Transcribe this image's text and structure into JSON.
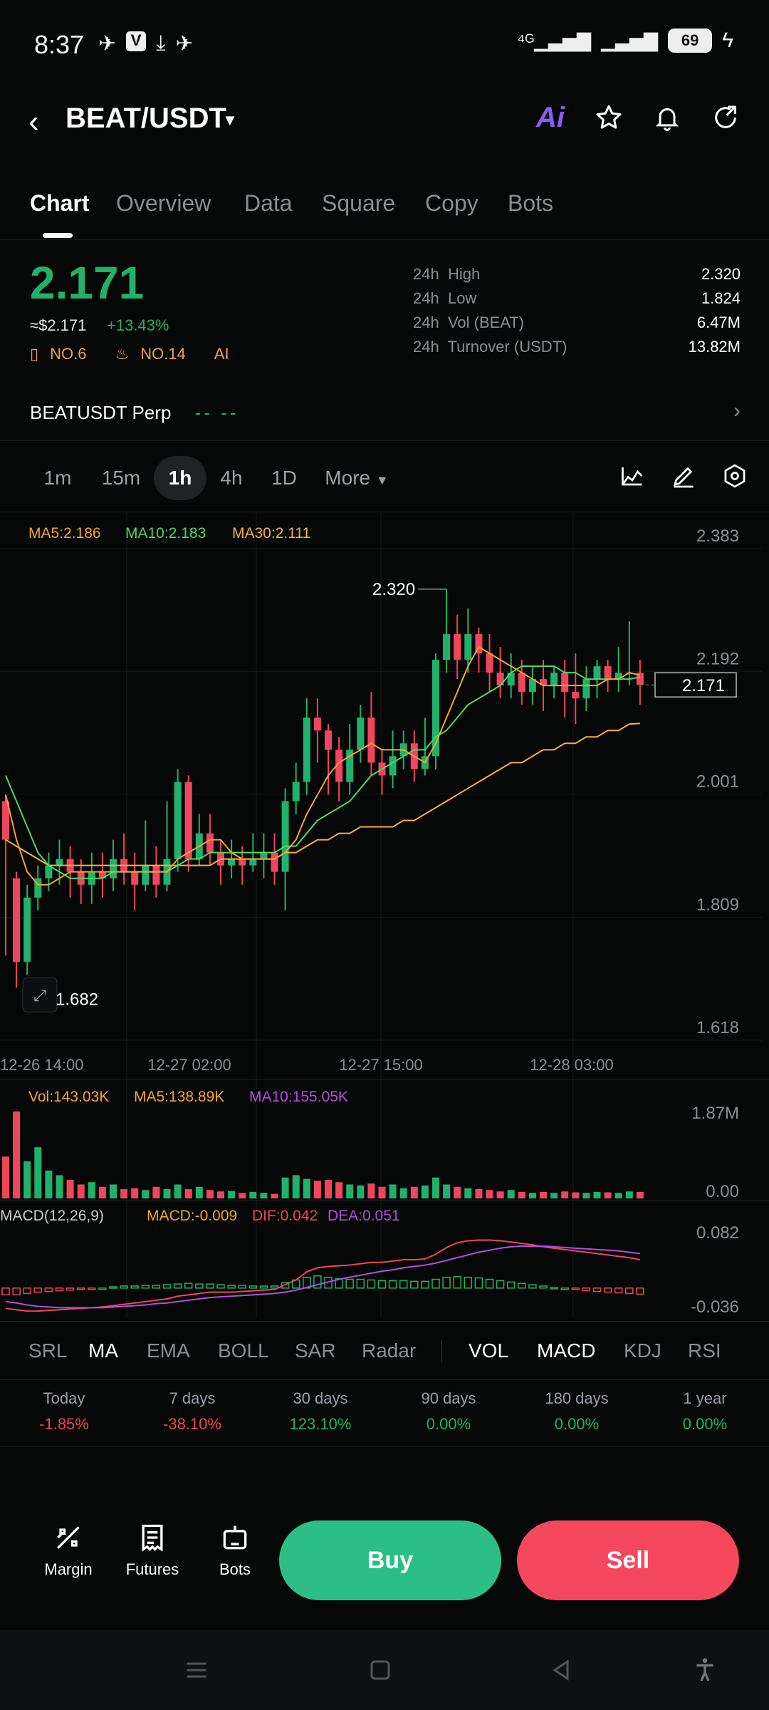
{
  "status_bar": {
    "time": "8:37",
    "battery": "69"
  },
  "header": {
    "pair": "BEAT/USDT",
    "ai_label": "Ai"
  },
  "tabs": [
    "Chart",
    "Overview",
    "Data",
    "Square",
    "Copy",
    "Bots"
  ],
  "active_tab": "Chart",
  "price": {
    "last": "2.171",
    "usd": "≈$2.171",
    "change": "+13.43%",
    "rank1": "NO.6",
    "rank2": "NO.14",
    "ai": "AI"
  },
  "stats": [
    {
      "period": "24h",
      "label": "High",
      "value": "2.320"
    },
    {
      "period": "24h",
      "label": "Low",
      "value": "1.824"
    },
    {
      "period": "24h",
      "label": "Vol (BEAT)",
      "value": "6.47M"
    },
    {
      "period": "24h",
      "label": "Turnover (USDT)",
      "value": "13.82M"
    }
  ],
  "perp": {
    "label": "BEATUSDT Perp",
    "value": "-- --"
  },
  "intervals": [
    "1m",
    "15m",
    "1h",
    "4h",
    "1D",
    "More"
  ],
  "active_interval": "1h",
  "ma_legend": {
    "ma5": "MA5:2.186",
    "ma10": "MA10:2.183",
    "ma30": "MA30:2.111"
  },
  "vol_legend": {
    "vol": "Vol:143.03K",
    "ma5": "MA5:138.89K",
    "ma10": "MA10:155.05K"
  },
  "macd_legend": {
    "title": "MACD(12,26,9)",
    "macd": "MACD:-0.009",
    "dif": "DIF:0.042",
    "dea": "DEA:0.051"
  },
  "colors": {
    "up": "#20b26c",
    "down": "#f0455e",
    "ma5": "#f5a623",
    "ma10": "#4cd964",
    "ma30": "#f5b041",
    "purple": "#b44ee0"
  },
  "chart_data": {
    "type": "candlestick",
    "y_ticks": [
      "2.383",
      "2.192",
      "2.001",
      "1.809",
      "1.618"
    ],
    "ylim": [
      1.618,
      2.383
    ],
    "x_ticks": [
      "12-26 14:00",
      "12-27 02:00",
      "12-27 15:00",
      "12-28 03:00"
    ],
    "high_label": "2.320",
    "low_label": "1.682",
    "last_price_label": "2.171",
    "candles": [
      [
        1.99,
        1.93,
        2.0,
        1.75
      ],
      [
        1.87,
        1.74,
        1.88,
        1.7
      ],
      [
        1.74,
        1.84,
        1.86,
        1.72
      ],
      [
        1.84,
        1.87,
        1.89,
        1.82
      ],
      [
        1.87,
        1.89,
        1.91,
        1.85
      ],
      [
        1.89,
        1.9,
        1.93,
        1.86
      ],
      [
        1.9,
        1.88,
        1.92,
        1.84
      ],
      [
        1.88,
        1.86,
        1.9,
        1.83
      ],
      [
        1.86,
        1.88,
        1.91,
        1.83
      ],
      [
        1.88,
        1.87,
        1.91,
        1.84
      ],
      [
        1.87,
        1.9,
        1.93,
        1.85
      ],
      [
        1.9,
        1.88,
        1.94,
        1.86
      ],
      [
        1.88,
        1.86,
        1.91,
        1.82
      ],
      [
        1.86,
        1.89,
        1.96,
        1.85
      ],
      [
        1.89,
        1.86,
        1.92,
        1.84
      ],
      [
        1.86,
        1.9,
        1.99,
        1.85
      ],
      [
        1.9,
        2.02,
        2.04,
        1.88
      ],
      [
        2.02,
        1.9,
        2.03,
        1.88
      ],
      [
        1.9,
        1.94,
        1.97,
        1.89
      ],
      [
        1.94,
        1.91,
        1.97,
        1.89
      ],
      [
        1.91,
        1.89,
        1.93,
        1.86
      ],
      [
        1.89,
        1.9,
        1.93,
        1.87
      ],
      [
        1.9,
        1.89,
        1.92,
        1.86
      ],
      [
        1.89,
        1.9,
        1.94,
        1.88
      ],
      [
        1.9,
        1.91,
        1.94,
        1.87
      ],
      [
        1.91,
        1.88,
        1.94,
        1.86
      ],
      [
        1.88,
        1.99,
        2.01,
        1.82
      ],
      [
        1.99,
        2.02,
        2.05,
        1.97
      ],
      [
        2.02,
        2.12,
        2.15,
        2.0
      ],
      [
        2.12,
        2.1,
        2.15,
        2.05
      ],
      [
        2.1,
        2.07,
        2.11,
        2.0
      ],
      [
        2.07,
        2.02,
        2.09,
        1.99
      ],
      [
        2.02,
        2.07,
        2.11,
        2.0
      ],
      [
        2.07,
        2.12,
        2.14,
        2.05
      ],
      [
        2.12,
        2.05,
        2.16,
        2.03
      ],
      [
        2.05,
        2.03,
        2.07,
        2.0
      ],
      [
        2.03,
        2.06,
        2.1,
        2.01
      ],
      [
        2.06,
        2.08,
        2.1,
        2.04
      ],
      [
        2.08,
        2.04,
        2.1,
        2.02
      ],
      [
        2.04,
        2.06,
        2.12,
        2.03
      ],
      [
        2.06,
        2.21,
        2.22,
        2.04
      ],
      [
        2.21,
        2.25,
        2.32,
        2.19
      ],
      [
        2.25,
        2.21,
        2.28,
        2.18
      ],
      [
        2.21,
        2.25,
        2.29,
        2.19
      ],
      [
        2.25,
        2.22,
        2.26,
        2.19
      ],
      [
        2.22,
        2.19,
        2.25,
        2.16
      ],
      [
        2.19,
        2.17,
        2.23,
        2.15
      ],
      [
        2.17,
        2.19,
        2.22,
        2.15
      ],
      [
        2.19,
        2.16,
        2.21,
        2.14
      ],
      [
        2.16,
        2.18,
        2.2,
        2.14
      ],
      [
        2.18,
        2.17,
        2.21,
        2.13
      ],
      [
        2.17,
        2.19,
        2.2,
        2.15
      ],
      [
        2.19,
        2.16,
        2.21,
        2.12
      ],
      [
        2.16,
        2.15,
        2.22,
        2.11
      ],
      [
        2.15,
        2.18,
        2.2,
        2.13
      ],
      [
        2.18,
        2.2,
        2.21,
        2.15
      ],
      [
        2.2,
        2.18,
        2.21,
        2.16
      ],
      [
        2.18,
        2.19,
        2.23,
        2.16
      ],
      [
        2.19,
        2.19,
        2.27,
        2.17
      ],
      [
        2.19,
        2.171,
        2.21,
        2.14
      ]
    ],
    "ma5": [
      2.0,
      1.93,
      1.88,
      1.86,
      1.86,
      1.87,
      1.88,
      1.88,
      1.88,
      1.88,
      1.88,
      1.88,
      1.88,
      1.88,
      1.88,
      1.88,
      1.9,
      1.91,
      1.92,
      1.93,
      1.93,
      1.91,
      1.9,
      1.9,
      1.9,
      1.9,
      1.91,
      1.93,
      1.97,
      2.0,
      2.03,
      2.05,
      2.06,
      2.07,
      2.08,
      2.07,
      2.07,
      2.07,
      2.06,
      2.05,
      2.08,
      2.12,
      2.16,
      2.2,
      2.23,
      2.22,
      2.21,
      2.2,
      2.19,
      2.18,
      2.17,
      2.17,
      2.17,
      2.17,
      2.17,
      2.17,
      2.18,
      2.18,
      2.19,
      2.186
    ],
    "ma10": [
      2.03,
      1.99,
      1.95,
      1.91,
      1.89,
      1.88,
      1.87,
      1.87,
      1.87,
      1.87,
      1.88,
      1.88,
      1.88,
      1.88,
      1.88,
      1.88,
      1.89,
      1.9,
      1.9,
      1.91,
      1.91,
      1.91,
      1.91,
      1.91,
      1.91,
      1.91,
      1.92,
      1.92,
      1.94,
      1.96,
      1.97,
      1.98,
      1.99,
      2.01,
      2.03,
      2.04,
      2.05,
      2.06,
      2.07,
      2.07,
      2.09,
      2.1,
      2.12,
      2.14,
      2.15,
      2.16,
      2.17,
      2.19,
      2.2,
      2.2,
      2.2,
      2.2,
      2.19,
      2.19,
      2.18,
      2.18,
      2.18,
      2.18,
      2.18,
      2.183
    ],
    "ma30": [
      1.93,
      1.92,
      1.91,
      1.9,
      1.89,
      1.89,
      1.89,
      1.89,
      1.89,
      1.89,
      1.89,
      1.89,
      1.89,
      1.89,
      1.89,
      1.89,
      1.89,
      1.89,
      1.89,
      1.89,
      1.9,
      1.9,
      1.9,
      1.9,
      1.9,
      1.9,
      1.91,
      1.91,
      1.92,
      1.93,
      1.93,
      1.94,
      1.94,
      1.95,
      1.95,
      1.95,
      1.95,
      1.96,
      1.96,
      1.97,
      1.98,
      1.99,
      2.0,
      2.01,
      2.02,
      2.03,
      2.04,
      2.05,
      2.05,
      2.06,
      2.07,
      2.07,
      2.08,
      2.08,
      2.09,
      2.09,
      2.1,
      2.1,
      2.11,
      2.111
    ],
    "vol_ticks": [
      "1.87M",
      "0.00"
    ],
    "volumes": [
      0.9,
      1.87,
      0.8,
      1.1,
      0.6,
      0.5,
      0.4,
      0.3,
      0.35,
      0.25,
      0.3,
      0.2,
      0.22,
      0.18,
      0.25,
      0.2,
      0.3,
      0.2,
      0.25,
      0.18,
      0.15,
      0.16,
      0.12,
      0.14,
      0.12,
      0.1,
      0.45,
      0.5,
      0.42,
      0.38,
      0.4,
      0.35,
      0.3,
      0.28,
      0.32,
      0.25,
      0.3,
      0.22,
      0.25,
      0.28,
      0.45,
      0.3,
      0.25,
      0.22,
      0.2,
      0.18,
      0.15,
      0.18,
      0.14,
      0.12,
      0.14,
      0.12,
      0.15,
      0.13,
      0.12,
      0.14,
      0.13,
      0.12,
      0.15,
      0.14
    ],
    "macd_ticks": [
      "0.082",
      "-0.036"
    ],
    "macd_hist": [
      -0.01,
      -0.01,
      -0.008,
      -0.006,
      -0.005,
      -0.004,
      -0.003,
      -0.002,
      -0.001,
      0.0,
      0.002,
      0.003,
      0.003,
      0.004,
      0.004,
      0.005,
      0.006,
      0.007,
      0.006,
      0.006,
      0.005,
      0.004,
      0.004,
      0.003,
      0.003,
      0.003,
      0.008,
      0.012,
      0.016,
      0.018,
      0.016,
      0.014,
      0.013,
      0.013,
      0.012,
      0.011,
      0.011,
      0.011,
      0.01,
      0.01,
      0.013,
      0.016,
      0.017,
      0.016,
      0.015,
      0.013,
      0.011,
      0.009,
      0.007,
      0.005,
      0.003,
      0.001,
      0.0,
      -0.002,
      -0.004,
      -0.005,
      -0.006,
      -0.007,
      -0.008,
      -0.009
    ],
    "dif": [
      -0.03,
      -0.032,
      -0.034,
      -0.034,
      -0.033,
      -0.032,
      -0.031,
      -0.03,
      -0.029,
      -0.028,
      -0.026,
      -0.024,
      -0.022,
      -0.02,
      -0.018,
      -0.016,
      -0.012,
      -0.01,
      -0.008,
      -0.006,
      -0.006,
      -0.006,
      -0.005,
      -0.004,
      -0.003,
      -0.002,
      0.005,
      0.012,
      0.024,
      0.03,
      0.032,
      0.033,
      0.034,
      0.036,
      0.038,
      0.038,
      0.04,
      0.042,
      0.042,
      0.043,
      0.05,
      0.06,
      0.067,
      0.07,
      0.071,
      0.071,
      0.07,
      0.068,
      0.066,
      0.064,
      0.061,
      0.059,
      0.057,
      0.055,
      0.053,
      0.051,
      0.049,
      0.047,
      0.045,
      0.042
    ],
    "dea": [
      -0.02,
      -0.022,
      -0.025,
      -0.027,
      -0.028,
      -0.029,
      -0.029,
      -0.029,
      -0.029,
      -0.029,
      -0.028,
      -0.027,
      -0.026,
      -0.025,
      -0.023,
      -0.022,
      -0.02,
      -0.018,
      -0.016,
      -0.014,
      -0.013,
      -0.012,
      -0.011,
      -0.01,
      -0.009,
      -0.008,
      -0.006,
      -0.003,
      0.001,
      0.005,
      0.009,
      0.013,
      0.016,
      0.019,
      0.022,
      0.025,
      0.027,
      0.03,
      0.032,
      0.034,
      0.037,
      0.041,
      0.045,
      0.049,
      0.053,
      0.056,
      0.059,
      0.061,
      0.062,
      0.062,
      0.062,
      0.061,
      0.06,
      0.059,
      0.058,
      0.057,
      0.056,
      0.055,
      0.053,
      0.051
    ]
  },
  "indicator_tabs": [
    "SRL",
    "MA",
    "EMA",
    "BOLL",
    "SAR",
    "Radar",
    "VOL",
    "MACD",
    "KDJ",
    "RSI"
  ],
  "active_indicators": [
    "MA",
    "VOL",
    "MACD"
  ],
  "performance": [
    {
      "label": "Today",
      "value": "-1.85%",
      "dir": "down"
    },
    {
      "label": "7 days",
      "value": "-38.10%",
      "dir": "down"
    },
    {
      "label": "30 days",
      "value": "123.10%",
      "dir": "up"
    },
    {
      "label": "90 days",
      "value": "0.00%",
      "dir": "up"
    },
    {
      "label": "180 days",
      "value": "0.00%",
      "dir": "up"
    },
    {
      "label": "1 year",
      "value": "0.00%",
      "dir": "up"
    }
  ],
  "bottom": {
    "margin": "Margin",
    "futures": "Futures",
    "bots": "Bots",
    "buy": "Buy",
    "sell": "Sell"
  }
}
